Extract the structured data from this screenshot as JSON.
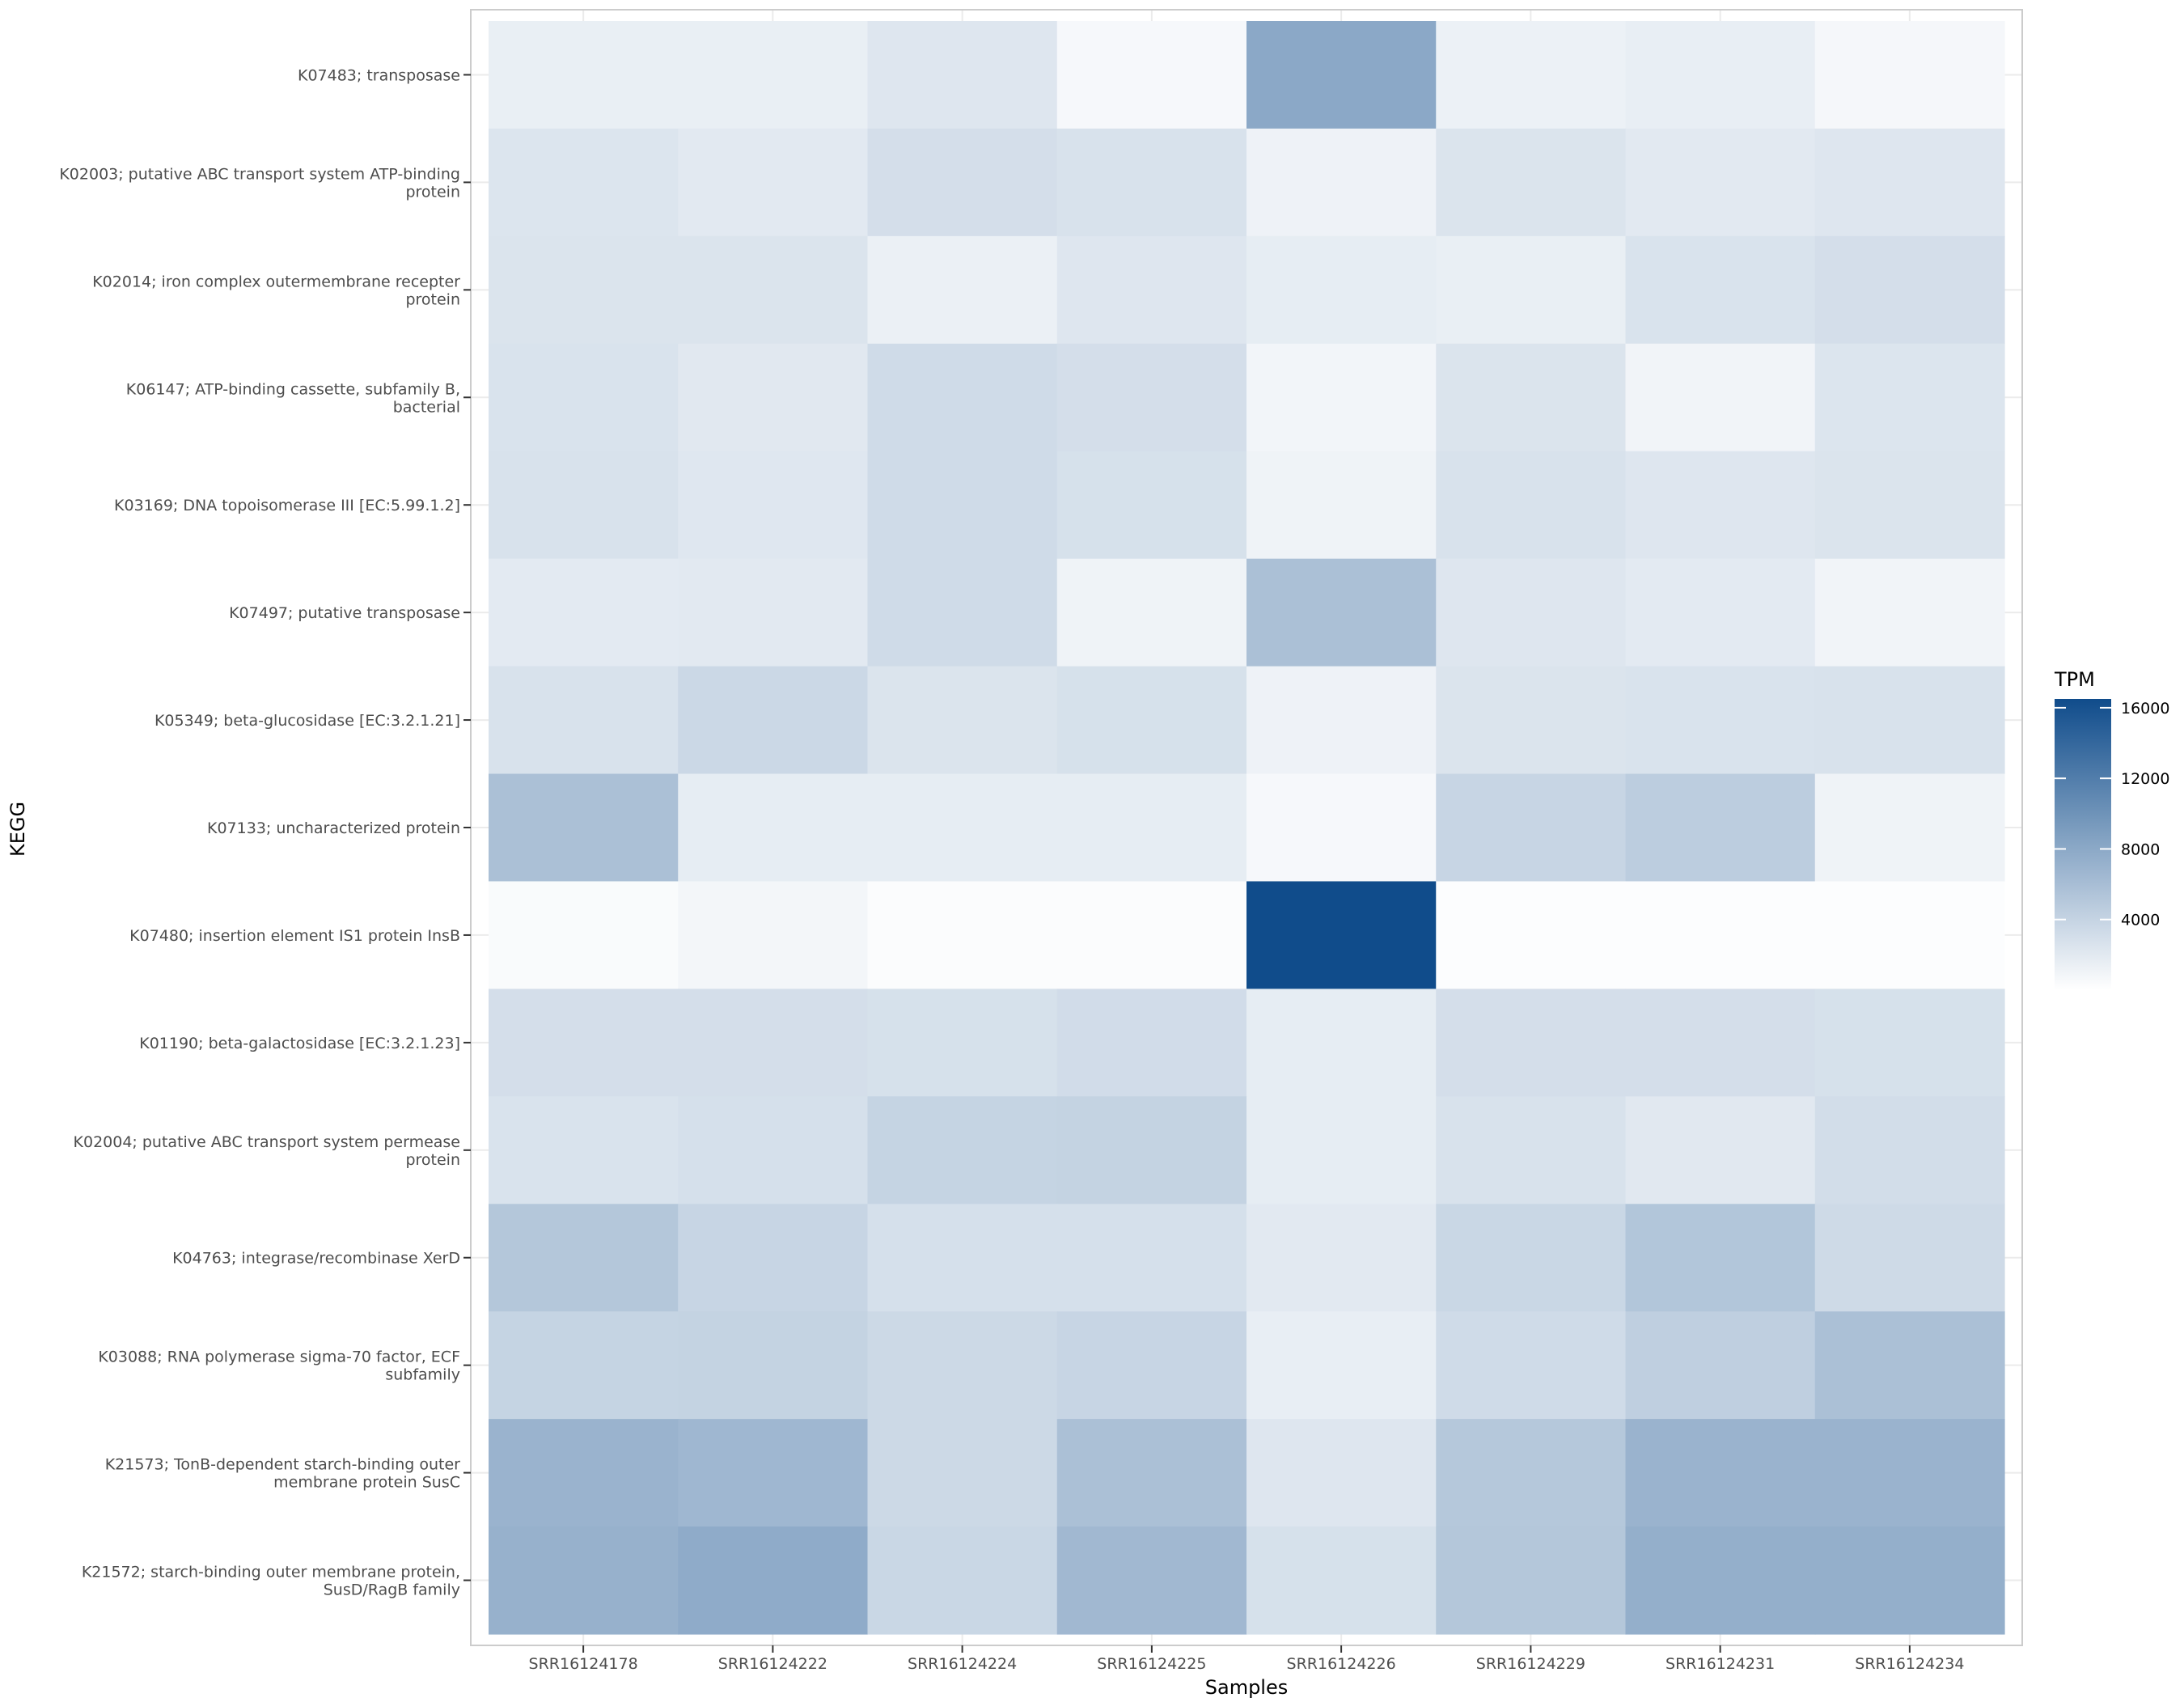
{
  "chart_data": {
    "type": "heatmap",
    "title": "",
    "xlabel": "Samples",
    "ylabel": "KEGG",
    "x": [
      "SRR16124178",
      "SRR16124222",
      "SRR16124224",
      "SRR16124225",
      "SRR16124226",
      "SRR16124229",
      "SRR16124231",
      "SRR16124234"
    ],
    "y": [
      "K07483; transposase",
      "K02003; putative ABC transport system ATP-binding protein",
      "K02014; iron complex outermembrane recepter protein",
      "K06147; ATP-binding cassette, subfamily B, bacterial",
      "K03169; DNA topoisomerase III [EC:5.99.1.2]",
      "K07497; putative transposase",
      "K05349; beta-glucosidase [EC:3.2.1.21]",
      "K07133; uncharacterized protein",
      "K07480; insertion element IS1 protein InsB",
      "K01190; beta-galactosidase [EC:3.2.1.23]",
      "K02004; putative ABC transport system permease protein",
      "K04763; integrase/recombinase XerD",
      "K03088; RNA polymerase sigma-70 factor, ECF subfamily",
      "K21573; TonB-dependent starch-binding outer membrane protein SusC",
      "K21572; starch-binding outer membrane protein, SusD/RagB family"
    ],
    "y_label_lines": [
      [
        "K07483; transposase"
      ],
      [
        "K02003; putative ABC transport system ATP-binding",
        "protein"
      ],
      [
        "K02014; iron complex outermembrane recepter",
        "protein"
      ],
      [
        "K06147; ATP-binding cassette, subfamily B,",
        "bacterial"
      ],
      [
        "K03169; DNA topoisomerase III [EC:5.99.1.2]"
      ],
      [
        "K07497; putative transposase"
      ],
      [
        "K05349; beta-glucosidase [EC:3.2.1.21]"
      ],
      [
        "K07133; uncharacterized protein"
      ],
      [
        "K07480; insertion element IS1 protein InsB"
      ],
      [
        "K01190; beta-galactosidase [EC:3.2.1.23]"
      ],
      [
        "K02004; putative ABC transport system permease",
        "protein"
      ],
      [
        "K04763; integrase/recombinase XerD"
      ],
      [
        "K03088; RNA polymerase sigma-70 factor, ECF",
        "subfamily"
      ],
      [
        "K21573; TonB-dependent starch-binding outer",
        "membrane protein SusC"
      ],
      [
        "K21572; starch-binding outer membrane protein,",
        "SusD/RagB family"
      ]
    ],
    "values": [
      [
        1500,
        1500,
        2300,
        600,
        8000,
        1300,
        1600,
        700
      ],
      [
        2400,
        2000,
        3000,
        2700,
        1200,
        2500,
        2000,
        2300
      ],
      [
        2500,
        2500,
        1400,
        2300,
        1700,
        1500,
        2600,
        3000
      ],
      [
        2600,
        2100,
        3300,
        3000,
        900,
        2500,
        1000,
        2400
      ],
      [
        2700,
        2200,
        3300,
        2800,
        1100,
        2700,
        2300,
        2500
      ],
      [
        1900,
        2000,
        3300,
        1100,
        5800,
        2300,
        1900,
        1000
      ],
      [
        2700,
        3600,
        2500,
        2800,
        1200,
        2500,
        2600,
        2700
      ],
      [
        5800,
        1700,
        1700,
        1700,
        600,
        3900,
        4600,
        1100
      ],
      [
        400,
        800,
        300,
        300,
        16500,
        200,
        200,
        200
      ],
      [
        3000,
        3000,
        2800,
        3200,
        1700,
        3000,
        3000,
        2800
      ],
      [
        2600,
        2900,
        4000,
        4100,
        1700,
        2700,
        2100,
        3100
      ],
      [
        5200,
        3900,
        2900,
        2900,
        2000,
        3700,
        5300,
        3400
      ],
      [
        4000,
        4100,
        3500,
        3900,
        1600,
        3300,
        4400,
        5800
      ],
      [
        7000,
        6600,
        3500,
        5800,
        2300,
        5100,
        7000,
        7000
      ],
      [
        7200,
        7700,
        3700,
        6500,
        2800,
        5200,
        7400,
        7400
      ]
    ],
    "colorbar": {
      "title": "TPM",
      "ticks": [
        4000,
        8000,
        12000,
        16000
      ],
      "min": 0,
      "max": 16500,
      "low_color": "#ffffff",
      "high_color": "#104c8b"
    },
    "grid": true,
    "legend_position": "right"
  }
}
